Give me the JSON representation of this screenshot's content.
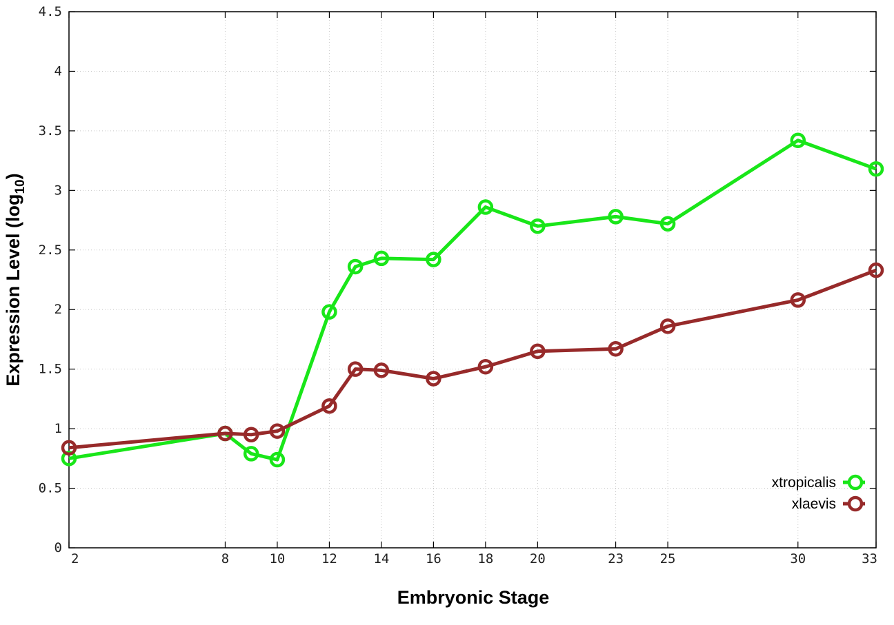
{
  "chart_data": {
    "type": "line",
    "xlabel": "Embryonic Stage",
    "ylabel_main": "Expression Level (log",
    "ylabel_sub": "10",
    "ylabel_close": ")",
    "x": [
      2,
      8,
      9,
      10,
      12,
      13,
      14,
      16,
      18,
      20,
      23,
      25,
      30,
      33
    ],
    "xlim": [
      2,
      33
    ],
    "ylim": [
      0,
      4.5
    ],
    "x_ticks": [
      2,
      8,
      10,
      12,
      14,
      16,
      18,
      20,
      23,
      25,
      30,
      33
    ],
    "x_tick_labels": [
      "2",
      "8",
      "10",
      "12",
      "14",
      "16",
      "18",
      "20",
      "23",
      "25",
      "30",
      "33"
    ],
    "y_ticks": [
      0,
      0.5,
      1,
      1.5,
      2,
      2.5,
      3,
      3.5,
      4,
      4.5
    ],
    "y_tick_labels": [
      "0",
      "0.5",
      "1",
      "1.5",
      "2",
      "2.5",
      "3",
      "3.5",
      "4",
      "4.5"
    ],
    "grid": true,
    "legend_position": "bottom-right",
    "series": [
      {
        "name": "xtropicalis",
        "color": "#19e619",
        "values": [
          0.75,
          0.96,
          0.79,
          0.74,
          1.98,
          2.36,
          2.43,
          2.42,
          2.86,
          2.7,
          2.78,
          2.72,
          3.42,
          3.18
        ]
      },
      {
        "name": "xlaevis",
        "color": "#972a2a",
        "values": [
          0.84,
          0.96,
          0.95,
          0.98,
          1.19,
          1.5,
          1.49,
          1.42,
          1.52,
          1.65,
          1.67,
          1.86,
          2.08,
          2.33
        ]
      }
    ]
  }
}
